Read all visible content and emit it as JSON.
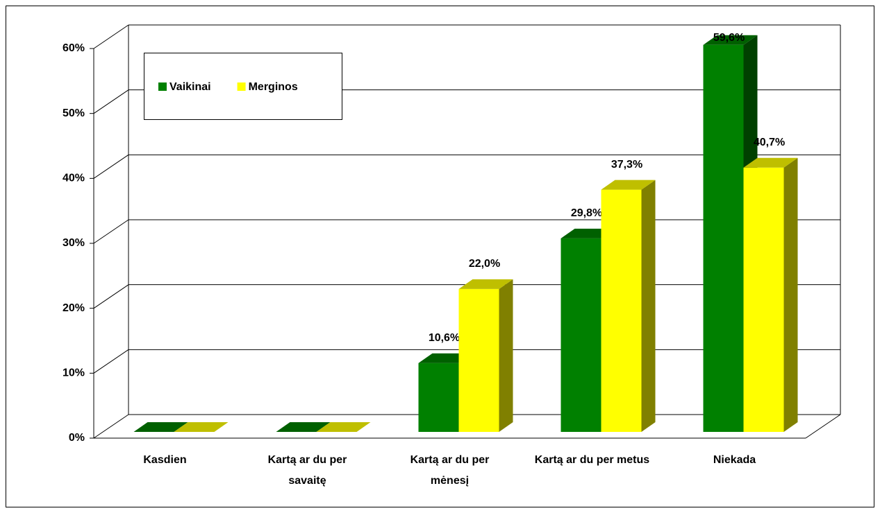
{
  "chart_data": {
    "type": "bar3d",
    "categories": [
      "Kasdien",
      "Kartą ar du per savaitę",
      "Kartą ar du per mėnesį",
      "Kartą ar du per metus",
      "Niekada"
    ],
    "series": [
      {
        "name": "Vaikinai",
        "color": "#008000",
        "values": [
          0,
          0,
          10.6,
          29.8,
          59.6
        ],
        "value_labels": [
          null,
          null,
          "10,6%",
          "29,8%",
          "59,6%"
        ]
      },
      {
        "name": "Merginos",
        "color": "#ffff00",
        "values": [
          0,
          0,
          22.0,
          37.3,
          40.7
        ],
        "value_labels": [
          null,
          null,
          "22,0%",
          "37,3%",
          "40,7%"
        ]
      }
    ],
    "ylim": [
      0,
      60
    ],
    "yticks": [
      {
        "value": 0,
        "label": "0%"
      },
      {
        "value": 10,
        "label": "10%"
      },
      {
        "value": 20,
        "label": "20%"
      },
      {
        "value": 30,
        "label": "30%"
      },
      {
        "value": 40,
        "label": "40%"
      },
      {
        "value": 50,
        "label": "50%"
      },
      {
        "value": 60,
        "label": "60%"
      }
    ],
    "grid": true,
    "legend": "top-left"
  }
}
